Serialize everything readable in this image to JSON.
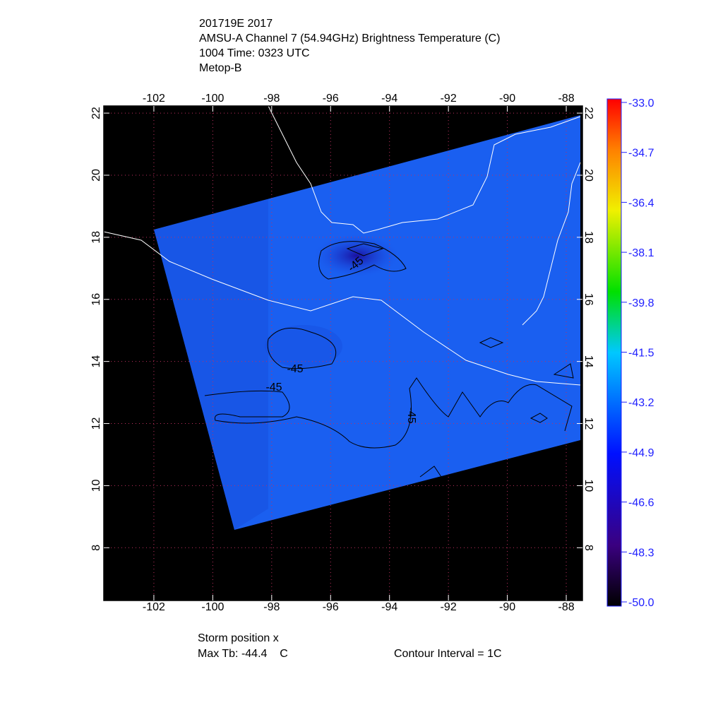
{
  "title_lines": [
    "201719E 2017",
    "AMSU-A Channel 7 (54.94GHz) Brightness Temperature (C)",
    "1004 Time: 0323 UTC",
    "Metop-B"
  ],
  "map": {
    "lon_range": [
      -103.7,
      -87.45
    ],
    "lat_range": [
      6.3,
      22.23
    ],
    "lon_ticks": [
      -102,
      -100,
      -98,
      -96,
      -94,
      -92,
      -90,
      -88
    ],
    "lat_ticks": [
      22,
      20,
      18,
      16,
      14,
      12,
      10,
      8
    ],
    "contour_labels": [
      "-45",
      "-45",
      "-45",
      "-45"
    ]
  },
  "colorbar": {
    "range": [
      -50,
      -33
    ],
    "ticks": [
      {
        "value": -33,
        "label": "-33.0"
      },
      {
        "value": -34.7,
        "label": "-34.7"
      },
      {
        "value": -36.4,
        "label": "-36.4"
      },
      {
        "value": -38.1,
        "label": "-38.1"
      },
      {
        "value": -39.8,
        "label": "-39.8"
      },
      {
        "value": -41.5,
        "label": "-41.5"
      },
      {
        "value": -43.2,
        "label": "-43.2"
      },
      {
        "value": -44.9,
        "label": "-44.9"
      },
      {
        "value": -46.6,
        "label": "-46.6"
      },
      {
        "value": -48.3,
        "label": "-48.3"
      },
      {
        "value": -50,
        "label": "-50.0"
      }
    ]
  },
  "footer": {
    "storm": "Storm position x",
    "max_tb": "Max Tb: -44.4    C",
    "contour": "Contour Interval = 1C"
  }
}
